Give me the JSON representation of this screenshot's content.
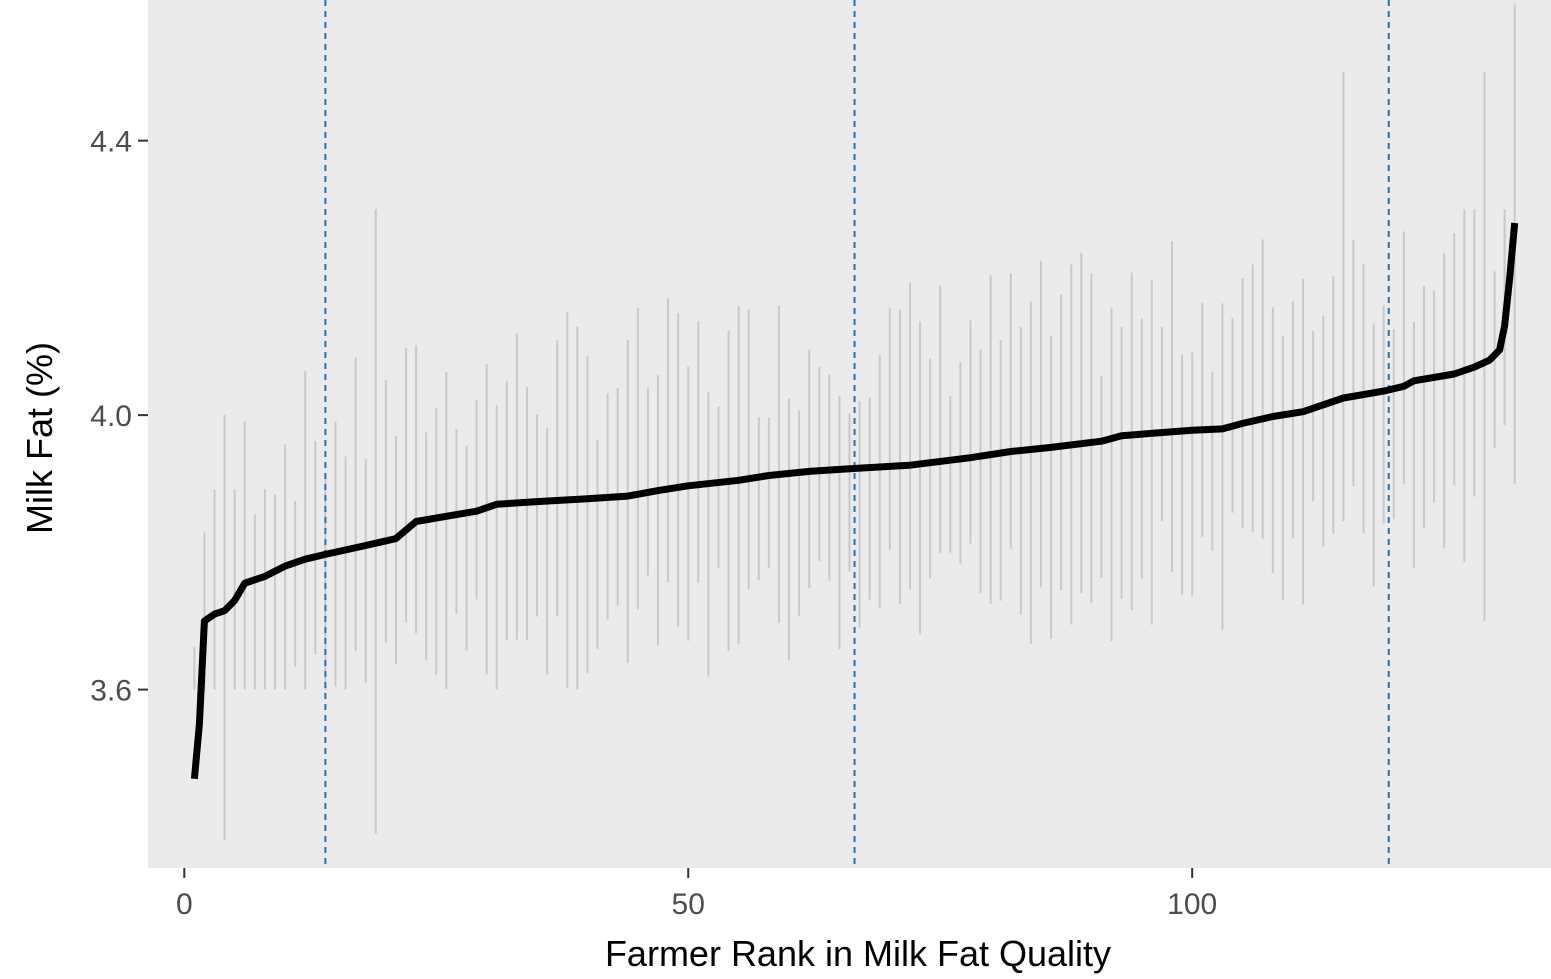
{
  "chart_data": {
    "type": "line",
    "title": "",
    "xlabel": "Farmer Rank in Milk Fat Quality",
    "ylabel": "Milk Fat (%)",
    "xlim": [
      -3.6,
      135.6
    ],
    "ylim": [
      3.34,
      4.605
    ],
    "x_ticks": [
      0,
      50,
      100
    ],
    "y_ticks": [
      3.6,
      4.0,
      4.4
    ],
    "grid": false,
    "legend": "none",
    "vlines": [
      14,
      66.5,
      119.5
    ],
    "series": [
      {
        "knots": [
          [
            1,
            3.47
          ],
          [
            1.5,
            3.55
          ],
          [
            2,
            3.7
          ],
          [
            3,
            3.71
          ],
          [
            4,
            3.715
          ],
          [
            5,
            3.73
          ],
          [
            6,
            3.755
          ],
          [
            8,
            3.765
          ],
          [
            10,
            3.78
          ],
          [
            12,
            3.79
          ],
          [
            14,
            3.797
          ],
          [
            18,
            3.81
          ],
          [
            21,
            3.82
          ],
          [
            23,
            3.845
          ],
          [
            27,
            3.855
          ],
          [
            29,
            3.86
          ],
          [
            31,
            3.87
          ],
          [
            35,
            3.874
          ],
          [
            40,
            3.878
          ],
          [
            44,
            3.882
          ],
          [
            47,
            3.89
          ],
          [
            50,
            3.897
          ],
          [
            55,
            3.905
          ],
          [
            58,
            3.912
          ],
          [
            62,
            3.918
          ],
          [
            66,
            3.922
          ],
          [
            72,
            3.927
          ],
          [
            78,
            3.938
          ],
          [
            82,
            3.947
          ],
          [
            86,
            3.953
          ],
          [
            91,
            3.962
          ],
          [
            93,
            3.97
          ],
          [
            100,
            3.978
          ],
          [
            103,
            3.98
          ],
          [
            105,
            3.988
          ],
          [
            108,
            3.998
          ],
          [
            111,
            4.005
          ],
          [
            115,
            4.025
          ],
          [
            119,
            4.035
          ],
          [
            121,
            4.042
          ],
          [
            122,
            4.05
          ],
          [
            126,
            4.06
          ],
          [
            128,
            4.07
          ],
          [
            129.5,
            4.08
          ],
          [
            130.5,
            4.095
          ],
          [
            131,
            4.13
          ],
          [
            131.5,
            4.2
          ],
          [
            132,
            4.28
          ]
        ]
      }
    ],
    "interval_style": {
      "color": "#c9c9c9",
      "pattern": "one grey vertical range bar per farmer rank, lower and upper bounds mostly between 3.6 and 4.3"
    },
    "colors": {
      "panel_background": "#ebebeb",
      "line": "#000000",
      "interval": "#c9c9c9",
      "vline": "#2a6fb0",
      "text": "#4d4d4d"
    }
  }
}
